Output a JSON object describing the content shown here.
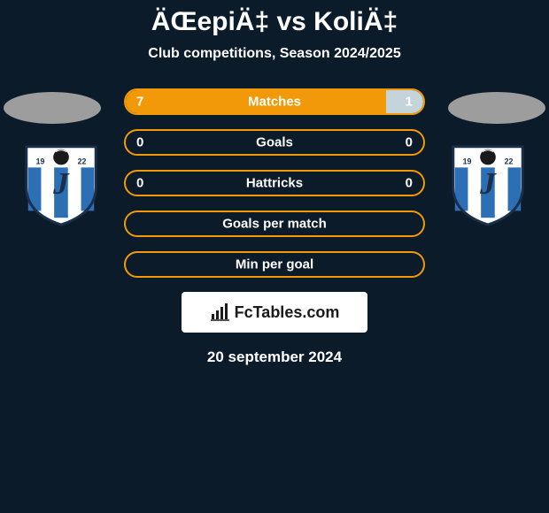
{
  "title": "ÄŒepiÄ‡ vs KoliÄ‡",
  "subtitle": "Club competitions, Season 2024/2025",
  "date": "20 september 2024",
  "brand": "FcTables.com",
  "colors": {
    "background": "#0c1b2a",
    "left_ellipse": "#9d9d9d",
    "right_ellipse": "#9d9d9d",
    "left_fill": "#f19909",
    "right_fill": "#c4d4db",
    "border": "#f19909",
    "text": "#ffffff"
  },
  "logo": {
    "year": "1922",
    "letter": "J",
    "bg": "#ffffff",
    "stripe1": "#2c6fb5",
    "stripe2": "#ffffff",
    "ball": "#1a1a1a"
  },
  "bars": [
    {
      "label": "Matches",
      "left": "7",
      "right": "1",
      "left_pct": 87.5,
      "right_pct": 12.5,
      "left_fill": "#f19909",
      "right_fill": "#c4d4db"
    },
    {
      "label": "Goals",
      "left": "0",
      "right": "0",
      "left_pct": 0,
      "right_pct": 0,
      "left_fill": "#f19909",
      "right_fill": "#c4d4db"
    },
    {
      "label": "Hattricks",
      "left": "0",
      "right": "0",
      "left_pct": 0,
      "right_pct": 0,
      "left_fill": "#f19909",
      "right_fill": "#c4d4db"
    },
    {
      "label": "Goals per match",
      "left": "",
      "right": "",
      "left_pct": 0,
      "right_pct": 0,
      "left_fill": "#f19909",
      "right_fill": "#c4d4db"
    },
    {
      "label": "Min per goal",
      "left": "",
      "right": "",
      "left_pct": 0,
      "right_pct": 0,
      "left_fill": "#f19909",
      "right_fill": "#c4d4db"
    }
  ]
}
